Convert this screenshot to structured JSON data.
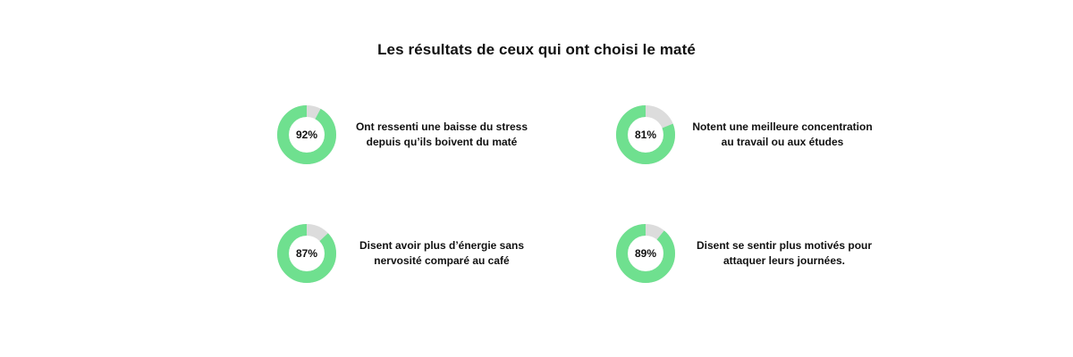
{
  "title": "Les résultats de ceux qui ont choisi le maté",
  "colors": {
    "accent": "#6fe08f",
    "track": "#dcdcdc",
    "text": "#111111",
    "background": "#ffffff"
  },
  "chart_data": {
    "type": "pie",
    "title": "Les résultats de ceux qui ont choisi le maté",
    "items": [
      {
        "value": 92,
        "label": "92%",
        "description": [
          "Ont ressenti une baisse du stress",
          "depuis qu’ils boivent du maté"
        ]
      },
      {
        "value": 81,
        "label": "81%",
        "description": [
          "Notent une meilleure concentration",
          "au travail ou aux études"
        ]
      },
      {
        "value": 87,
        "label": "87%",
        "description": [
          "Disent avoir plus d’énergie sans",
          "nervosité comparé au café"
        ]
      },
      {
        "value": 89,
        "label": "89%",
        "description": [
          "Disent se sentir plus motivés pour",
          "attaquer leurs journées."
        ]
      }
    ]
  }
}
